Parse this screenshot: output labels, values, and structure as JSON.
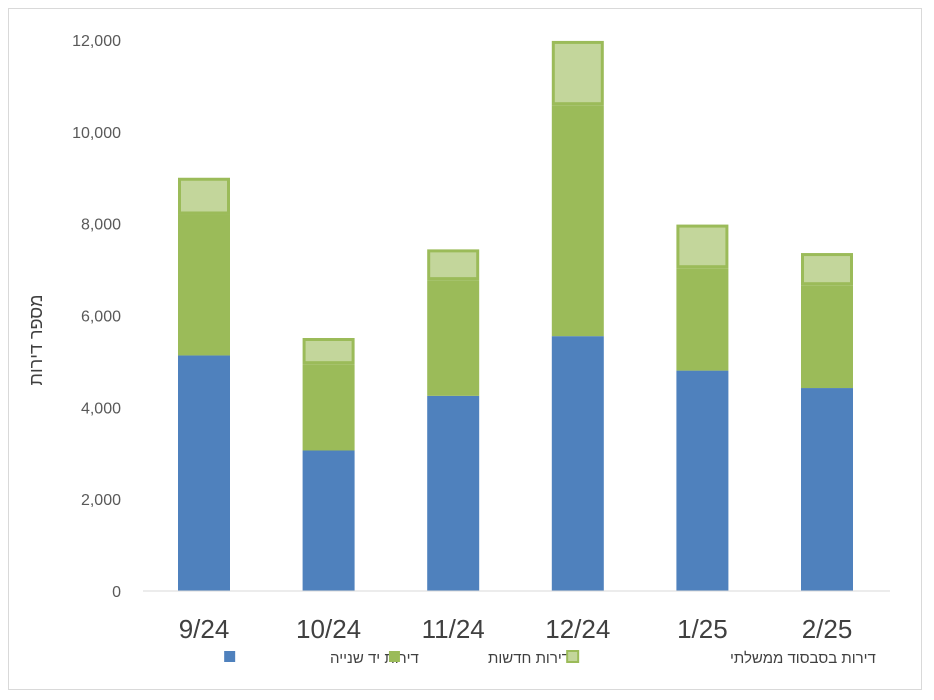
{
  "chart_data": {
    "type": "bar",
    "stacked": true,
    "categories": [
      "9/24",
      "10/24",
      "11/24",
      "12/24",
      "1/25",
      "2/25"
    ],
    "series": [
      {
        "name": "דירות יד שנייה",
        "color": "#4f81bd",
        "values": [
          5130,
          3060,
          4250,
          5550,
          4800,
          4420
        ]
      },
      {
        "name": "דירות חדשות",
        "color": "#9bbb59",
        "values": [
          3070,
          1880,
          2520,
          5030,
          2230,
          2240
        ]
      },
      {
        "name": "דירות בסבסוד ממשלתי",
        "color": "#c3d69b",
        "border": "#9bbb59",
        "values": [
          800,
          570,
          670,
          1400,
          950,
          700
        ]
      }
    ],
    "ylabel": "מספר דירות",
    "xlabel": "",
    "title": "",
    "ylim": [
      0,
      12000
    ],
    "yticks": [
      0,
      2000,
      4000,
      6000,
      8000,
      10000,
      12000
    ],
    "ytick_labels": [
      "0",
      "2,000",
      "4,000",
      "6,000",
      "8,000",
      "10,000",
      "12,000"
    ],
    "grid": false,
    "legend": "bottom"
  }
}
